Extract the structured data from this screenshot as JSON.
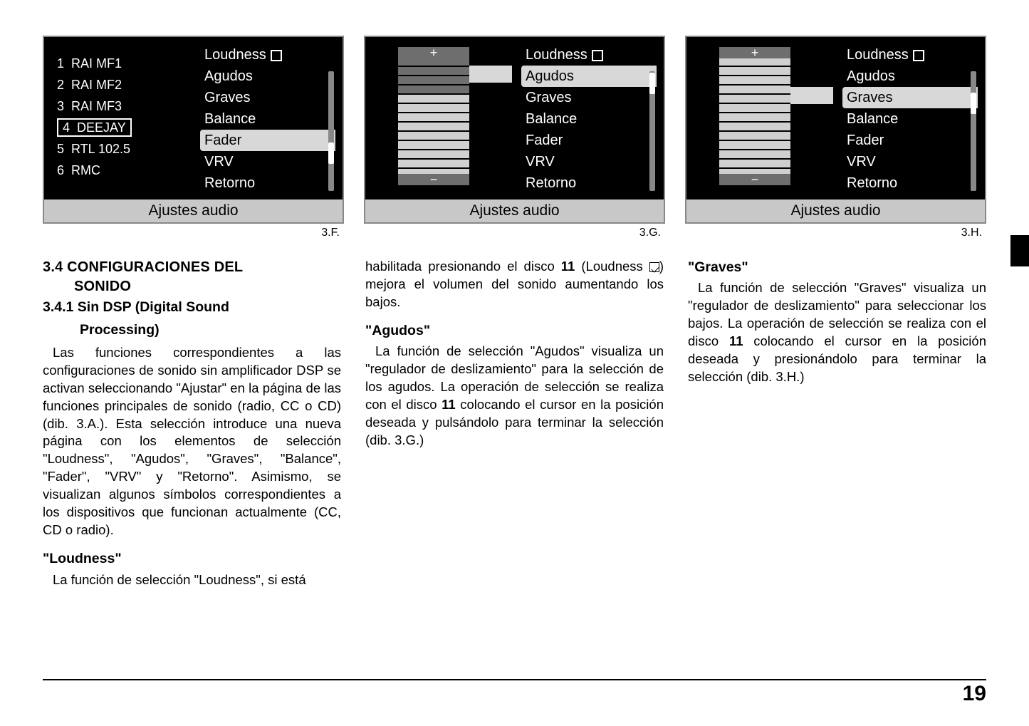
{
  "screens": {
    "footer": "Ajustes audio",
    "captions": [
      "3.F.",
      "3.G.",
      "3.H."
    ],
    "menu_items": [
      "Loudness",
      "Agudos",
      "Graves",
      "Balance",
      "Fader",
      "VRV",
      "Retorno"
    ],
    "radio_presets": [
      {
        "n": "1",
        "label": "RAI MF1"
      },
      {
        "n": "2",
        "label": "RAI MF2"
      },
      {
        "n": "3",
        "label": "RAI MF3"
      },
      {
        "n": "4",
        "label": "DEEJAY",
        "boxed": true
      },
      {
        "n": "5",
        "label": "RTL 102.5"
      },
      {
        "n": "6",
        "label": "RMC"
      }
    ],
    "screen1": {
      "selected_menu_index": 4
    },
    "screen2": {
      "selected_menu_index": 1,
      "slider": {
        "steps": 14,
        "active_from": 5,
        "active_to": 14
      }
    },
    "screen3": {
      "selected_menu_index": 2,
      "slider": {
        "steps": 14,
        "active_from": 0,
        "active_to": 14
      }
    }
  },
  "text": {
    "h_section": "3.4 CONFIGURACIONES DEL",
    "h_section2": "SONIDO",
    "h_sub": "3.4.1  Sin DSP (Digital Sound",
    "h_sub2": "Processing)",
    "p1a": "Las funciones correspondientes a las configuraciones de sonido sin amplificador DSP se activan seleccionando \"Ajustar\" en la página de las funciones principales de sonido (radio, CC o CD) (dib. 3.A.). Esta selección introduce una nueva página con los elementos de selección \"Loudness\", \"Agudos\", \"Graves\", \"Balance\", \"Fader\", \"VRV\" y \"Retorno\". Asimismo, se visualizan algunos símbolos correspondientes a los dispositivos que funcionan actualmente (CC, CD o radio).",
    "h_loud": "\"Loudness\"",
    "p_loud": "La función de selección \"Loudness\", si está",
    "p2top_a": "habilitada presionando el disco ",
    "p2top_bold": "11",
    "p2top_b": " (Loudness ",
    "p2top_c": ") mejora el volumen del sonido aumentando los bajos.",
    "h_agudos": "\"Agudos\"",
    "p_agudos_a": "La función de selección \"Agudos\" visualiza un \"regulador de deslizamiento\" para la selección de los agudos. La operación de selección se realiza con el disco ",
    "p_agudos_bold": "11",
    "p_agudos_b": " colocando el cursor en la posición deseada y pulsándolo para terminar la selección (dib. 3.G.)",
    "h_graves": "\"Graves\"",
    "p_graves_a": "La función de selección \"Graves\" visualiza un \"regulador de deslizamiento\" para seleccionar los bajos. La operación de selección se realiza con el disco ",
    "p_graves_bold": "11",
    "p_graves_b": " colocando el cursor en la posición deseada y presionándolo para terminar la selección (dib. 3.H.)"
  },
  "page_number": "19",
  "colors": {
    "screen_bg": "#000000",
    "screen_border": "#888888",
    "footer_bg": "#c8c8c8",
    "menu_sel_bg": "#d8d8d8",
    "slider_inactive": "#6e6e6e",
    "slider_active": "#d0d0d0"
  }
}
